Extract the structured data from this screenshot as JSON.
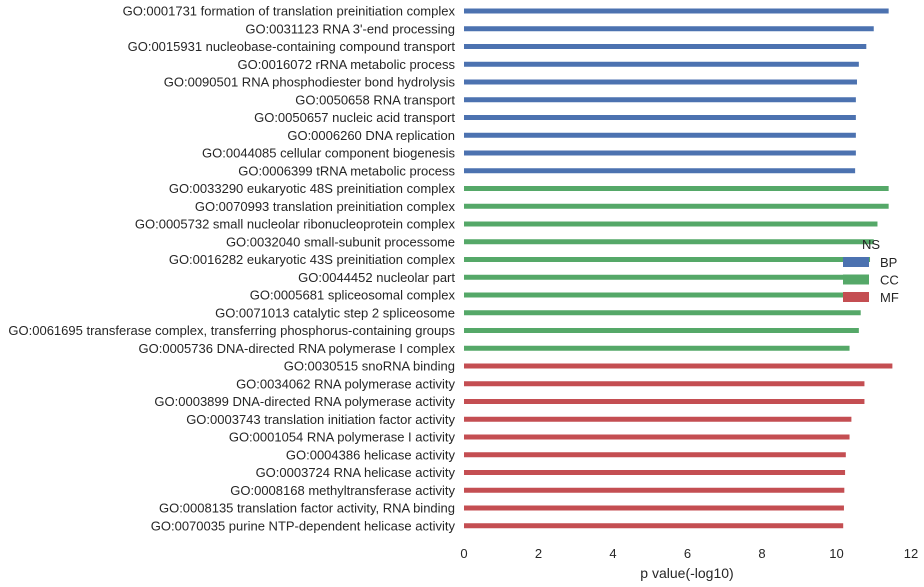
{
  "chart_data": {
    "type": "bar",
    "orientation": "horizontal",
    "xlabel": "p value(-log10)",
    "xlim": [
      0,
      12
    ],
    "xticks": [
      "0",
      "2",
      "4",
      "6",
      "8",
      "10",
      "12"
    ],
    "grid": false,
    "legend": {
      "title": "NS",
      "placement": "right",
      "entries": [
        {
          "name": "BP",
          "color": "#4c72b0"
        },
        {
          "name": "CC",
          "color": "#55a868"
        },
        {
          "name": "MF",
          "color": "#c44e52"
        }
      ]
    },
    "categories": [
      {
        "label": "GO:0001731 formation of translation preinitiation complex",
        "value": 11.4,
        "group": "BP"
      },
      {
        "label": "GO:0031123 RNA 3'-end processing",
        "value": 11.0,
        "group": "BP"
      },
      {
        "label": "GO:0015931 nucleobase-containing compound transport",
        "value": 10.8,
        "group": "BP"
      },
      {
        "label": "GO:0016072 rRNA metabolic process",
        "value": 10.6,
        "group": "BP"
      },
      {
        "label": "GO:0090501 RNA phosphodiester bond hydrolysis",
        "value": 10.55,
        "group": "BP"
      },
      {
        "label": "GO:0050658 RNA transport",
        "value": 10.52,
        "group": "BP"
      },
      {
        "label": "GO:0050657 nucleic acid transport",
        "value": 10.52,
        "group": "BP"
      },
      {
        "label": "GO:0006260 DNA replication",
        "value": 10.52,
        "group": "BP"
      },
      {
        "label": "GO:0044085 cellular component biogenesis",
        "value": 10.52,
        "group": "BP"
      },
      {
        "label": "GO:0006399 tRNA metabolic process",
        "value": 10.5,
        "group": "BP"
      },
      {
        "label": "GO:0033290 eukaryotic 48S preinitiation complex",
        "value": 11.4,
        "group": "CC"
      },
      {
        "label": "GO:0070993 translation preinitiation complex",
        "value": 11.4,
        "group": "CC"
      },
      {
        "label": "GO:0005732 small nucleolar ribonucleoprotein complex",
        "value": 11.1,
        "group": "CC"
      },
      {
        "label": "GO:0032040 small-subunit processome",
        "value": 11.0,
        "group": "CC"
      },
      {
        "label": "GO:0016282 eukaryotic 43S preinitiation complex",
        "value": 10.9,
        "group": "CC"
      },
      {
        "label": "GO:0044452 nucleolar part",
        "value": 10.8,
        "group": "CC"
      },
      {
        "label": "GO:0005681 spliceosomal complex",
        "value": 10.7,
        "group": "CC"
      },
      {
        "label": "GO:0071013 catalytic step 2 spliceosome",
        "value": 10.65,
        "group": "CC"
      },
      {
        "label": "GO:0061695 transferase complex, transferring phosphorus-containing groups",
        "value": 10.6,
        "group": "CC"
      },
      {
        "label": "GO:0005736 DNA-directed RNA polymerase I complex",
        "value": 10.35,
        "group": "CC"
      },
      {
        "label": "GO:0030515 snoRNA binding",
        "value": 11.5,
        "group": "MF"
      },
      {
        "label": "GO:0034062 RNA polymerase activity",
        "value": 10.75,
        "group": "MF"
      },
      {
        "label": "GO:0003899 DNA-directed RNA polymerase activity",
        "value": 10.75,
        "group": "MF"
      },
      {
        "label": "GO:0003743 translation initiation factor activity",
        "value": 10.4,
        "group": "MF"
      },
      {
        "label": "GO:0001054 RNA polymerase I activity",
        "value": 10.35,
        "group": "MF"
      },
      {
        "label": "GO:0004386 helicase activity",
        "value": 10.25,
        "group": "MF"
      },
      {
        "label": "GO:0003724 RNA helicase activity",
        "value": 10.23,
        "group": "MF"
      },
      {
        "label": "GO:0008168 methyltransferase activity",
        "value": 10.21,
        "group": "MF"
      },
      {
        "label": "GO:0008135 translation factor activity, RNA binding",
        "value": 10.2,
        "group": "MF"
      },
      {
        "label": "GO:0070035 purine NTP-dependent helicase activity",
        "value": 10.18,
        "group": "MF"
      }
    ]
  }
}
